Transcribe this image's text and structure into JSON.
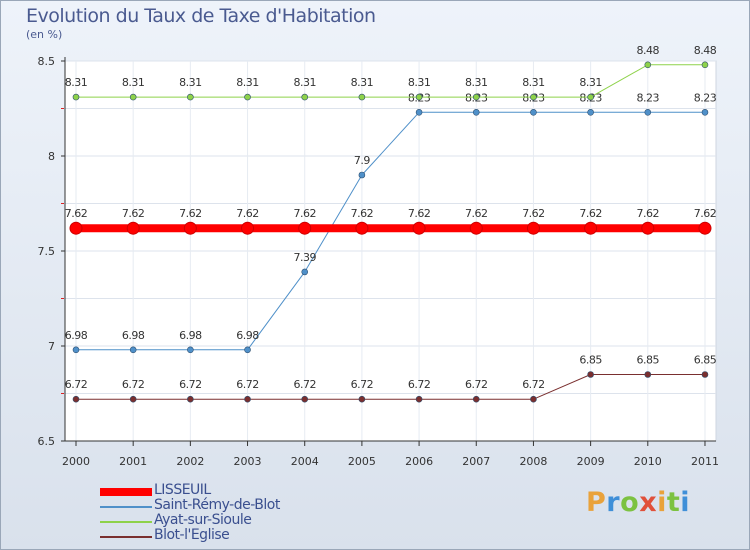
{
  "title": "Evolution du Taux de Taxe d'Habitation",
  "subtitle": "(en %)",
  "logo": {
    "text": "Proxiti",
    "colors": [
      "#e9a23b",
      "#3f8fd8",
      "#7cc241",
      "#e0503a",
      "#e9a23b",
      "#7cc241",
      "#3f8fd8"
    ]
  },
  "chart_data": {
    "type": "line",
    "x": [
      "2000",
      "2001",
      "2002",
      "2003",
      "2004",
      "2005",
      "2006",
      "2007",
      "2008",
      "2009",
      "2010",
      "2011"
    ],
    "ylim": [
      6.5,
      8.5
    ],
    "yticks": [
      "6.5",
      "7",
      "7.5",
      "8",
      "8.5"
    ],
    "grid": true,
    "legend_position": "bottom-left",
    "series": [
      {
        "name": "Saint-Rémy-de-Blot",
        "color": "#4f90c9",
        "width": 1,
        "marker": 3,
        "values": [
          6.98,
          6.98,
          6.98,
          6.98,
          7.39,
          7.9,
          8.23,
          8.23,
          8.23,
          8.23,
          8.23,
          8.23
        ],
        "labels": [
          "6.98",
          "6.98",
          "6.98",
          "6.98",
          "7.39",
          "7.9",
          "8.23",
          "8.23",
          "8.23",
          "8.23",
          "8.23",
          "8.23"
        ]
      },
      {
        "name": "Ayat-sur-Sioule",
        "color": "#8ed24a",
        "width": 1,
        "marker": 3,
        "values": [
          8.31,
          8.31,
          8.31,
          8.31,
          8.31,
          8.31,
          8.31,
          8.31,
          8.31,
          8.31,
          8.48,
          8.48
        ],
        "labels": [
          "8.31",
          "8.31",
          "8.31",
          "8.31",
          "8.31",
          "8.31",
          "8.31",
          "8.31",
          "8.31",
          "8.31",
          "8.48",
          "8.48"
        ]
      },
      {
        "name": "Blot-l'Eglise",
        "color": "#7a2f2f",
        "width": 1,
        "marker": 3,
        "values": [
          6.72,
          6.72,
          6.72,
          6.72,
          6.72,
          6.72,
          6.72,
          6.72,
          6.72,
          6.85,
          6.85,
          6.85
        ],
        "labels": [
          "6.72",
          "6.72",
          "6.72",
          "6.72",
          "6.72",
          "6.72",
          "6.72",
          "6.72",
          "6.72",
          "6.85",
          "6.85",
          "6.85"
        ]
      },
      {
        "name": "LISSEUIL",
        "color": "#ff0000",
        "width": 8,
        "marker": 6,
        "values": [
          7.62,
          7.62,
          7.62,
          7.62,
          7.62,
          7.62,
          7.62,
          7.62,
          7.62,
          7.62,
          7.62,
          7.62
        ],
        "labels": [
          "7.62",
          "7.62",
          "7.62",
          "7.62",
          "7.62",
          "7.62",
          "7.62",
          "7.62",
          "7.62",
          "7.62",
          "7.62",
          "7.62"
        ]
      }
    ],
    "legend": [
      {
        "name": "LISSEUIL",
        "color": "#ff0000",
        "thick": true
      },
      {
        "name": "Saint-Rémy-de-Blot",
        "color": "#4f90c9",
        "thick": false
      },
      {
        "name": "Ayat-sur-Sioule",
        "color": "#8ed24a",
        "thick": false
      },
      {
        "name": "Blot-l'Eglise",
        "color": "#7a2f2f",
        "thick": false
      }
    ]
  }
}
